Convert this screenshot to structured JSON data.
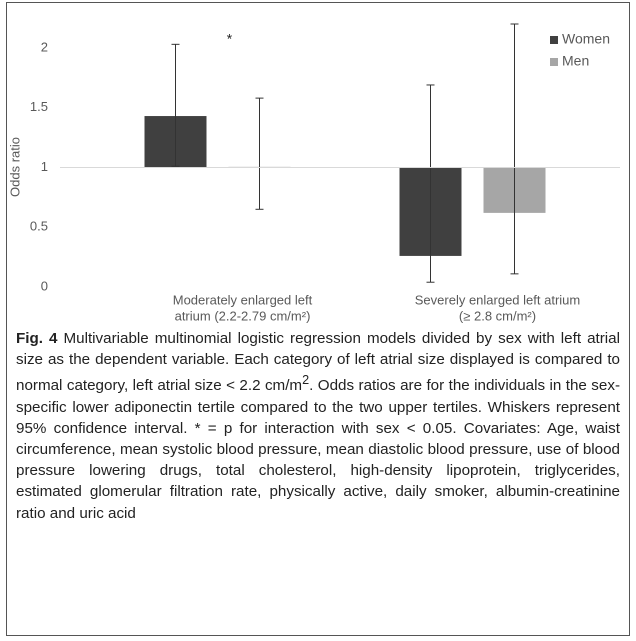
{
  "chart_data": {
    "type": "bar",
    "y_label": "Odds ratio",
    "categories": [
      [
        "Moderately enlarged left",
        "atrium (2.2-2.79 cm/m²)"
      ],
      [
        "Severely enlarged left atrium",
        "(≥ 2.8 cm/m²)"
      ]
    ],
    "series": [
      {
        "name": "Women",
        "color": "#404040",
        "values": [
          1.43,
          0.26
        ],
        "ci_low": [
          1.01,
          0.04
        ],
        "ci_high": [
          2.03,
          1.69
        ]
      },
      {
        "name": "Men",
        "color": "#a6a6a6",
        "values": [
          1.005,
          0.62
        ],
        "ci_low": [
          0.65,
          0.11
        ],
        "ci_high": [
          1.58,
          2.2
        ]
      }
    ],
    "baseline": 1,
    "annotation": "*",
    "ylim": [
      0,
      2.2
    ],
    "yticks": [
      0,
      0.5,
      1,
      1.5,
      2
    ],
    "legend": "top-right"
  },
  "caption": {
    "label": "Fig. 4",
    "parts": [
      " Multivariable multinomial logistic regression models divided by sex with left atrial size as the dependent variable. Each category of left atrial size displayed is compared to normal category, left atrial size < 2.2 cm/m",
      "2",
      ". Odds ratios are for the individuals in the sex-specific lower adiponectin tertile compared to the two upper tertiles. Whiskers represent 95% confidence interval. * = p for interaction with sex < 0.05. Covariates: Age, waist circumference, mean systolic blood pressure, mean diastolic blood pressure, use of blood pressure lowering drugs, total cholesterol, high-density lipoprotein, triglycerides, estimated glomerular filtration rate, physically active, daily smoker, albumin-creatinine ratio and uric acid"
    ]
  }
}
